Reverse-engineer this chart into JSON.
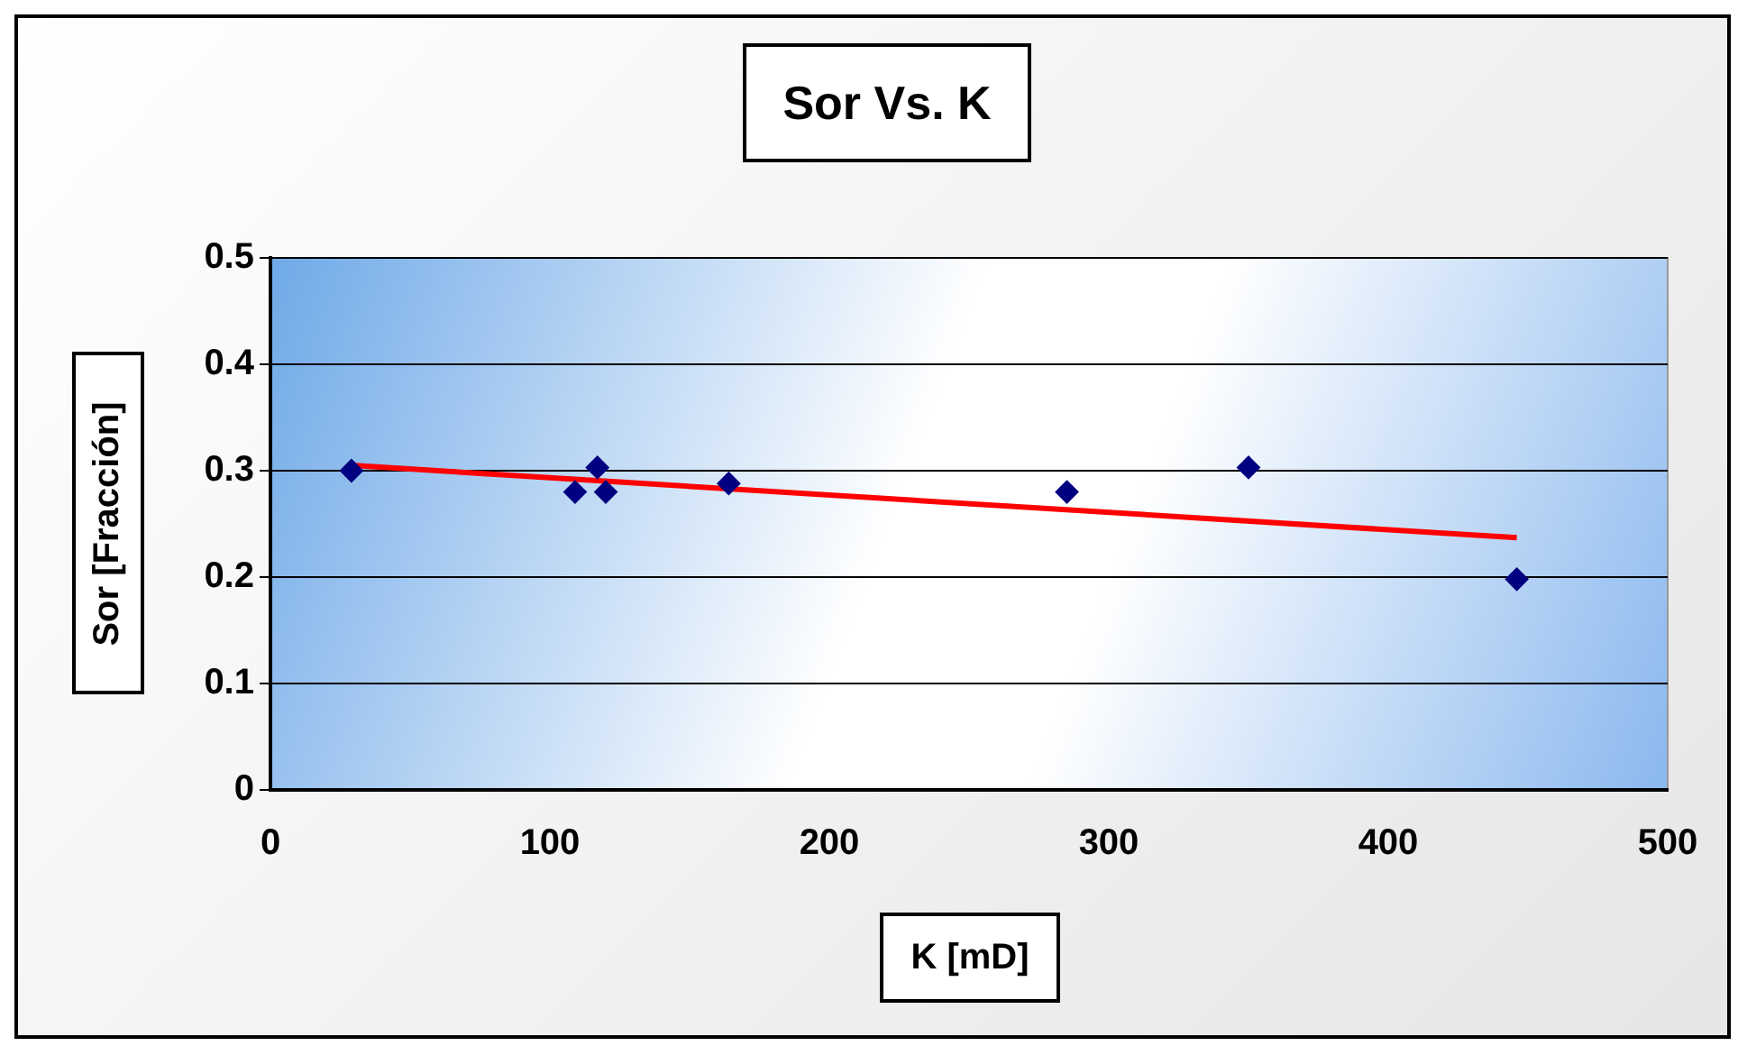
{
  "chart_data": {
    "type": "scatter",
    "title": "Sor Vs. K",
    "xlabel": "K [mD]",
    "ylabel": "Sor [Fracción]",
    "xlim": [
      0,
      500
    ],
    "xticks": [
      0,
      100,
      200,
      300,
      400,
      500
    ],
    "ylim": [
      0,
      0.5
    ],
    "yticks": [
      0,
      0.1,
      0.2,
      0.3,
      0.4,
      0.5
    ],
    "grid": "y",
    "legend": false,
    "series": [
      {
        "type": "scatter",
        "color": "#000080",
        "marker": "diamond",
        "x": [
          29,
          109,
          117,
          120,
          164,
          285,
          350,
          446
        ],
        "values": [
          0.3,
          0.28,
          0.303,
          0.28,
          0.288,
          0.28,
          0.303,
          0.198
        ]
      },
      {
        "type": "line",
        "color": "#ff0000",
        "marker": "none",
        "x": [
          29,
          446
        ],
        "values": [
          0.305,
          0.237
        ]
      }
    ]
  }
}
